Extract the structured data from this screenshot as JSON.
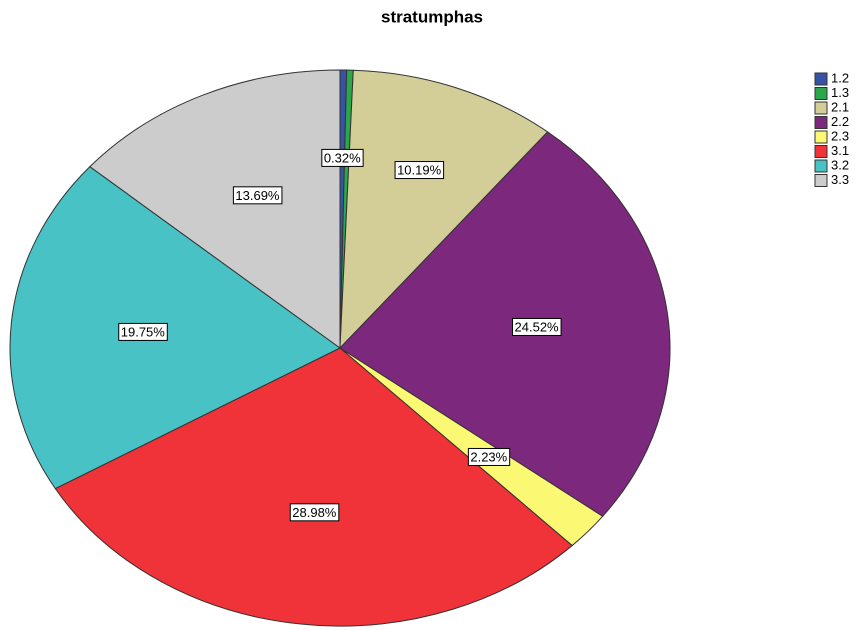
{
  "chart_data": {
    "type": "pie",
    "title": "stratumphas",
    "categories": [
      "1.2",
      "1.3",
      "2.1",
      "2.2",
      "2.3",
      "3.1",
      "3.2",
      "3.3"
    ],
    "values": [
      0.32,
      0.32,
      10.19,
      24.52,
      2.23,
      28.98,
      19.75,
      13.69
    ],
    "value_labels": [
      "0.32%",
      null,
      "10.19%",
      "24.52%",
      "2.23%",
      "28.98%",
      "19.75%",
      "13.69%"
    ],
    "colors": [
      "#3953a4",
      "#2aa74a",
      "#d3ce97",
      "#7b287d",
      "#fbf873",
      "#ef3338",
      "#48c2c5",
      "#cccccc"
    ],
    "legend": "right"
  }
}
